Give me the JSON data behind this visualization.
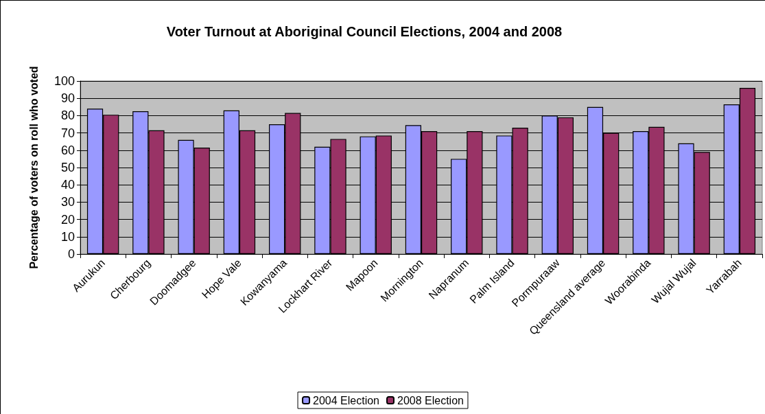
{
  "chart_data": {
    "type": "bar",
    "title": "Voter Turnout at Aboriginal Council Elections, 2004 and 2008",
    "ylabel": "Percentage of voters on roll who voted",
    "categories": [
      "Aurukun",
      "Cherbourg",
      "Doomadgee",
      "Hope Vale",
      "Kowanyama",
      "Lockhart River",
      "Mapoon",
      "Mornington",
      "Napranum",
      "Palm Island",
      "Pormpuraaw",
      "Queensland average",
      "Woorabinda",
      "Wujal Wujal",
      "Yarrabah"
    ],
    "series": [
      {
        "name": "2004 Election",
        "color": "#9999ff",
        "values": [
          84,
          82.5,
          66,
          83,
          75,
          62,
          68,
          74.5,
          55,
          68.5,
          80,
          85,
          71,
          64,
          86.5
        ]
      },
      {
        "name": "2008 Election",
        "color": "#993366",
        "values": [
          80.5,
          71.5,
          61.5,
          71.5,
          81.5,
          66.5,
          68.5,
          71,
          71,
          73,
          79,
          70,
          73.5,
          59,
          96
        ]
      }
    ],
    "ylim": [
      0,
      100
    ],
    "yticks": [
      0,
      10,
      20,
      30,
      40,
      50,
      60,
      70,
      80,
      90,
      100
    ],
    "grid": "y",
    "legend": "bottom"
  }
}
